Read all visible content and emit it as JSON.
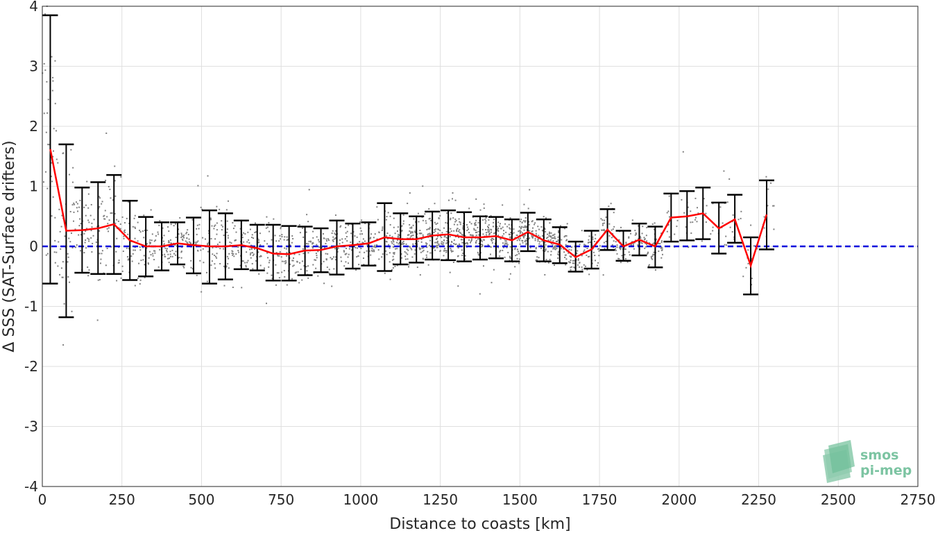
{
  "chart_data": {
    "type": "scatter",
    "xlabel": "Distance to coasts [km]",
    "ylabel": "Δ SSS (SAT-Surface drifters)",
    "xlim": [
      0,
      2750
    ],
    "ylim": [
      -4,
      4
    ],
    "x_ticks": [
      0,
      250,
      500,
      750,
      1000,
      1250,
      1500,
      1750,
      2000,
      2250,
      2500,
      2750
    ],
    "y_ticks": [
      -4,
      -3,
      -2,
      -1,
      0,
      1,
      2,
      3,
      4
    ],
    "x_tick_labels": [
      "0",
      "250",
      "500",
      "750",
      "1000",
      "1250",
      "1500",
      "1750",
      "2000",
      "2250",
      "2500",
      "2750"
    ],
    "y_tick_labels": [
      "-4",
      "-3",
      "-2",
      "-1",
      "0",
      "1",
      "2",
      "3",
      "4"
    ],
    "grid": true,
    "zero_line": {
      "y": 0,
      "color": "#0000dd",
      "style": "dashed"
    },
    "scatter_color": "#808080",
    "mean_color": "#ff0000",
    "errorbar_color": "#000000",
    "series": [
      {
        "type": "binned-mean-with-std",
        "x": [
          25,
          75,
          125,
          175,
          225,
          275,
          325,
          375,
          425,
          475,
          525,
          575,
          625,
          675,
          725,
          775,
          825,
          875,
          925,
          975,
          1025,
          1075,
          1125,
          1175,
          1225,
          1275,
          1325,
          1375,
          1425,
          1475,
          1525,
          1575,
          1625,
          1675,
          1725,
          1775,
          1825,
          1875,
          1925,
          1975,
          2025,
          2075,
          2125,
          2175,
          2225,
          2275
        ],
        "mean": [
          1.62,
          0.26,
          0.27,
          0.3,
          0.37,
          0.1,
          0.0,
          0.0,
          0.05,
          0.02,
          0.0,
          0.0,
          0.02,
          -0.03,
          -0.12,
          -0.13,
          -0.07,
          -0.06,
          0.0,
          0.02,
          0.05,
          0.15,
          0.12,
          0.12,
          0.18,
          0.2,
          0.15,
          0.15,
          0.17,
          0.1,
          0.24,
          0.1,
          0.03,
          -0.18,
          -0.05,
          0.28,
          0.0,
          0.11,
          0.0,
          0.48,
          0.5,
          0.55,
          0.3,
          0.45,
          -0.32,
          0.53
        ],
        "upper": [
          3.85,
          1.7,
          0.98,
          1.07,
          1.19,
          0.76,
          0.49,
          0.4,
          0.4,
          0.48,
          0.6,
          0.55,
          0.43,
          0.36,
          0.36,
          0.34,
          0.33,
          0.3,
          0.43,
          0.38,
          0.4,
          0.72,
          0.55,
          0.5,
          0.58,
          0.6,
          0.57,
          0.5,
          0.49,
          0.45,
          0.56,
          0.45,
          0.32,
          0.08,
          0.26,
          0.62,
          0.26,
          0.38,
          0.33,
          0.88,
          0.92,
          0.98,
          0.73,
          0.86,
          0.15,
          1.1
        ],
        "lower": [
          -0.62,
          -1.18,
          -0.44,
          -0.46,
          -0.46,
          -0.56,
          -0.5,
          -0.4,
          -0.3,
          -0.45,
          -0.62,
          -0.55,
          -0.38,
          -0.4,
          -0.57,
          -0.57,
          -0.48,
          -0.43,
          -0.47,
          -0.37,
          -0.32,
          -0.41,
          -0.3,
          -0.27,
          -0.22,
          -0.23,
          -0.25,
          -0.22,
          -0.2,
          -0.25,
          -0.08,
          -0.25,
          -0.28,
          -0.42,
          -0.37,
          -0.06,
          -0.24,
          -0.15,
          -0.35,
          0.08,
          0.1,
          0.12,
          -0.12,
          0.06,
          -0.8,
          -0.05
        ]
      }
    ]
  },
  "logo": {
    "line1": "smos",
    "line2": "pi-mep"
  }
}
